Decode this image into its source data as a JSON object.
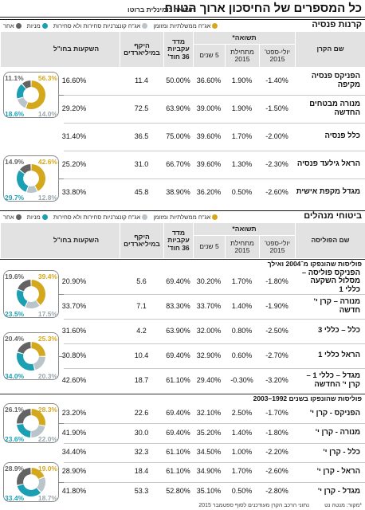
{
  "header": {
    "title": "כל המספרים של החיסכון ארוך הטווח",
    "subtitle": "תשואה נומינלית ברוטו"
  },
  "legend": [
    {
      "label": "אג\"ח ממשלתיות ומזומן",
      "color": "#d4a81c"
    },
    {
      "label": "אג\"ח קונצרניות סחירות ולא סחירות",
      "color": "#b9c4cb"
    },
    {
      "label": "מניות",
      "color": "#1b9fb3"
    },
    {
      "label": "אחר",
      "color": "#636363"
    }
  ],
  "sections": [
    {
      "title": "קרנות פנסיה",
      "columns": {
        "name": "שם הקרן",
        "return_group": "תשואה*",
        "q3": "יולי-ספט' 2015",
        "ytd": "מתחילת 2015",
        "y5": "5 שנים",
        "consistency": "מדד עקביות 36 חוד'",
        "volume": "היקף במיליארדים",
        "abroad": "השקעות בחו\"ל"
      },
      "groups": [
        {
          "rows": [
            [
              "הפניקס פנסיה מקיפה",
              "-1.40%",
              "1.90%",
              "36.60%",
              "50.00%",
              "11.4",
              "16.60%"
            ],
            [
              "מנורה מבטחים החדשה",
              "-1.50%",
              "1.90%",
              "39.00%",
              "63.90%",
              "72.5",
              "29.20%"
            ],
            [
              "כלל פנסיה",
              "-2.00%",
              "1.70%",
              "39.60%",
              "75.00%",
              "36.5",
              "31.40%"
            ],
            [
              "הראל גילעד פנסיה",
              "-2.30%",
              "1.30%",
              "39.60%",
              "66.70%",
              "31.0",
              "25.20%"
            ],
            [
              "מגדל מקפת אישית",
              "-2.60%",
              "0.50%",
              "36.20%",
              "38.90%",
              "45.8",
              "33.80%"
            ]
          ],
          "donuts": [
            {
              "values": [
                56.3,
                14.0,
                18.6,
                11.1
              ],
              "value_labels": [
                "56.3%",
                "14.0%",
                "18.6%",
                "11.1%"
              ]
            },
            {
              "values": [
                42.6,
                12.8,
                29.7,
                14.9
              ],
              "value_labels": [
                "42.6%",
                "12.8%",
                "29.7%",
                "14.9%"
              ]
            }
          ]
        }
      ]
    },
    {
      "title": "ביטוחי מנהלים",
      "columns": {
        "name": "שם הפוליסה",
        "return_group": "תשואה*",
        "q3": "יולי-ספט' 2015",
        "ytd": "מתחילת 2015",
        "y5": "5 שנים",
        "consistency": "מדד עקביות 36 חוד'",
        "volume": "היקף במיליארדים",
        "abroad": "השקעות בחו\"ל"
      },
      "groups": [
        {
          "title": "פוליסות שהונפקו מ־2004 ואילך",
          "rows": [
            [
              "הפניקס פוליסה – מסלול השקעה כללי 1",
              "-1.80%",
              "1.70%",
              "30.20%",
              "69.40%",
              "5.6",
              "20.90%"
            ],
            [
              "מנורה – קרן י' חדשה",
              "-1.90%",
              "1.40%",
              "33.70%",
              "83.30%",
              "7.1",
              "33.70%"
            ],
            [
              "כלל – כללי 3",
              "-2.50%",
              "0.80%",
              "32.00%",
              "63.90%",
              "4.2",
              "31.60%"
            ],
            [
              "הראל כללי 1",
              "-2.70%",
              "0.60%",
              "32.90%",
              "69.40%",
              "10.4",
              "30.80%"
            ],
            [
              "מגדל – כללי 1 – קרן י' החדשה",
              "-3.20%",
              "-0.30%",
              "29.40%",
              "61.10%",
              "18.7",
              "42.60%"
            ]
          ],
          "donuts": [
            {
              "values": [
                39.4,
                17.5,
                23.5,
                19.6
              ],
              "value_labels": [
                "39.4%",
                "17.5%",
                "23.5%",
                "19.6%"
              ]
            },
            {
              "values": [
                25.3,
                20.3,
                34.0,
                20.4
              ],
              "value_labels": [
                "25.3%",
                "20.3%",
                "34.0%",
                "20.4%"
              ]
            }
          ]
        },
        {
          "title": "פוליסות שהונפקו בשנים 1992–2003",
          "rows": [
            [
              "הפניקס - קרן י'",
              "-1.70%",
              "2.50%",
              "32.10%",
              "69.40%",
              "22.6",
              "23.20%"
            ],
            [
              "מנורה - קרן י'",
              "-1.80%",
              "1.40%",
              "35.20%",
              "69.40%",
              "30.0",
              "41.90%"
            ],
            [
              "כלל - קרן י'",
              "-2.20%",
              "1.00%",
              "34.50%",
              "61.10%",
              "32.3",
              "34.40%"
            ],
            [
              "הראל - קרן י'",
              "-2.60%",
              "1.70%",
              "34.90%",
              "61.10%",
              "18.4",
              "28.90%"
            ],
            [
              "מגדל - קרן י'",
              "-2.80%",
              "0.50%",
              "35.10%",
              "52.80%",
              "53.3",
              "41.80%"
            ]
          ],
          "donuts": [
            {
              "values": [
                28.3,
                22.0,
                23.6,
                26.1
              ],
              "value_labels": [
                "28.3%",
                "22.0%",
                "23.6%",
                "26.1%"
              ]
            },
            {
              "values": [
                19.0,
                18.7,
                33.4,
                28.9
              ],
              "value_labels": [
                "19.0%",
                "18.7%",
                "33.4%",
                "28.9%"
              ]
            }
          ]
        }
      ]
    }
  ],
  "footer": {
    "source": "*מקור: מנטה נט",
    "note": "נתוני הרכב הקרן מעודכנים לסוף ספטמבר 2015"
  }
}
